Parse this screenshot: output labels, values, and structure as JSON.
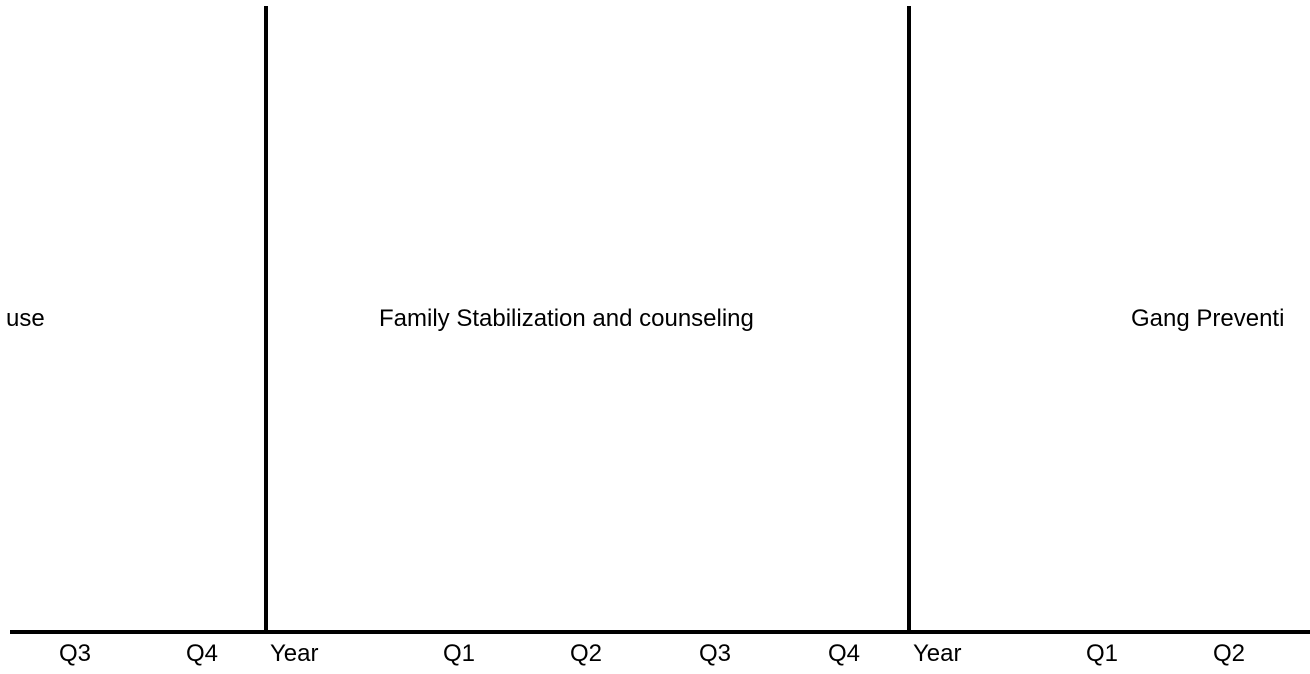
{
  "sections": [
    {
      "title": "use"
    },
    {
      "title": "Family Stabilization and counseling"
    },
    {
      "title": "Gang Preventi"
    }
  ],
  "ticks": {
    "left_q3": "Q3",
    "left_q4": "Q4",
    "mid_year": "Year",
    "mid_q1": "Q1",
    "mid_q2": "Q2",
    "mid_q3": "Q3",
    "mid_q4": "Q4",
    "right_year": "Year",
    "right_q1": "Q1",
    "right_q2": "Q2"
  }
}
